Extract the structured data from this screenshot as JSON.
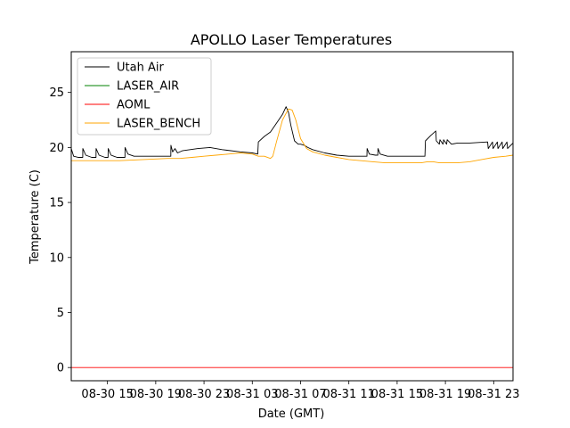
{
  "chart_data": {
    "type": "line",
    "title": "APOLLO Laser Temperatures",
    "xlabel": "Date (GMT)",
    "ylabel": "Temperature (C)",
    "xlim": [
      12.0,
      48.6
    ],
    "ylim": [
      -1.2,
      28.7
    ],
    "grid": false,
    "legend_position": "top-left",
    "x_unit": "hours since 08-30 00:00 GMT",
    "xticks": [
      {
        "value": 15,
        "label": "08-30 15"
      },
      {
        "value": 19,
        "label": "08-30 19"
      },
      {
        "value": 23,
        "label": "08-30 23"
      },
      {
        "value": 27,
        "label": "08-31 03"
      },
      {
        "value": 31,
        "label": "08-31 07"
      },
      {
        "value": 35,
        "label": "08-31 11"
      },
      {
        "value": 39,
        "label": "08-31 15"
      },
      {
        "value": 43,
        "label": "08-31 19"
      },
      {
        "value": 47,
        "label": "08-31 23"
      }
    ],
    "yticks": [
      {
        "value": 0,
        "label": "0"
      },
      {
        "value": 5,
        "label": "5"
      },
      {
        "value": 10,
        "label": "10"
      },
      {
        "value": 15,
        "label": "15"
      },
      {
        "value": 20,
        "label": "20"
      },
      {
        "value": 25,
        "label": "25"
      }
    ],
    "series": [
      {
        "name": "Utah Air",
        "color": "#000000",
        "points": [
          [
            12.0,
            19.9
          ],
          [
            12.2,
            19.2
          ],
          [
            12.6,
            19.1
          ],
          [
            12.95,
            19.1
          ],
          [
            12.96,
            19.9
          ],
          [
            13.2,
            19.3
          ],
          [
            13.7,
            19.1
          ],
          [
            14.05,
            19.1
          ],
          [
            14.06,
            19.9
          ],
          [
            14.3,
            19.3
          ],
          [
            14.8,
            19.1
          ],
          [
            15.05,
            19.1
          ],
          [
            15.06,
            19.9
          ],
          [
            15.3,
            19.3
          ],
          [
            15.8,
            19.1
          ],
          [
            16.45,
            19.1
          ],
          [
            16.46,
            20.0
          ],
          [
            16.7,
            19.4
          ],
          [
            17.2,
            19.2
          ],
          [
            18.5,
            19.2
          ],
          [
            19.5,
            19.2
          ],
          [
            20.25,
            19.2
          ],
          [
            20.26,
            20.2
          ],
          [
            20.4,
            19.6
          ],
          [
            20.6,
            19.9
          ],
          [
            20.8,
            19.5
          ],
          [
            21.2,
            19.7
          ],
          [
            22.5,
            19.9
          ],
          [
            23.5,
            20.0
          ],
          [
            24.5,
            19.8
          ],
          [
            26.0,
            19.6
          ],
          [
            27.0,
            19.5
          ],
          [
            27.45,
            19.4
          ],
          [
            27.5,
            20.5
          ],
          [
            28.0,
            21.0
          ],
          [
            28.5,
            21.4
          ],
          [
            29.0,
            22.2
          ],
          [
            29.5,
            23.0
          ],
          [
            29.8,
            23.7
          ],
          [
            30.0,
            23.2
          ],
          [
            30.2,
            22.0
          ],
          [
            30.5,
            20.6
          ],
          [
            30.8,
            20.3
          ],
          [
            31.0,
            20.3
          ],
          [
            31.3,
            20.2
          ],
          [
            31.6,
            20.0
          ],
          [
            32.0,
            19.8
          ],
          [
            33.0,
            19.5
          ],
          [
            34.0,
            19.3
          ],
          [
            35.0,
            19.2
          ],
          [
            36.5,
            19.2
          ],
          [
            36.51,
            19.9
          ],
          [
            36.7,
            19.4
          ],
          [
            37.2,
            19.3
          ],
          [
            37.4,
            19.3
          ],
          [
            37.41,
            19.9
          ],
          [
            37.6,
            19.4
          ],
          [
            38.2,
            19.2
          ],
          [
            39.5,
            19.2
          ],
          [
            41.0,
            19.2
          ],
          [
            41.3,
            19.2
          ],
          [
            41.35,
            20.6
          ],
          [
            41.8,
            21.1
          ],
          [
            42.2,
            21.5
          ],
          [
            42.25,
            20.6
          ],
          [
            42.5,
            20.3
          ],
          [
            42.55,
            20.7
          ],
          [
            42.8,
            20.3
          ],
          [
            42.85,
            20.7
          ],
          [
            43.1,
            20.3
          ],
          [
            43.15,
            20.7
          ],
          [
            43.5,
            20.3
          ],
          [
            44.0,
            20.4
          ],
          [
            45.0,
            20.4
          ],
          [
            46.5,
            20.5
          ],
          [
            46.55,
            19.9
          ],
          [
            46.9,
            20.5
          ],
          [
            46.95,
            19.9
          ],
          [
            47.3,
            20.5
          ],
          [
            47.35,
            19.9
          ],
          [
            47.7,
            20.5
          ],
          [
            47.75,
            19.9
          ],
          [
            48.1,
            20.5
          ],
          [
            48.15,
            19.9
          ],
          [
            48.6,
            20.4
          ]
        ]
      },
      {
        "name": "LASER_AIR",
        "color": "#008000",
        "points": []
      },
      {
        "name": "AOML",
        "color": "#ff0000",
        "points": [
          [
            12.0,
            0.0
          ],
          [
            48.6,
            0.0
          ]
        ]
      },
      {
        "name": "LASER_BENCH",
        "color": "#ffa500",
        "points": [
          [
            12.0,
            18.8
          ],
          [
            14.0,
            18.8
          ],
          [
            16.0,
            18.8
          ],
          [
            18.0,
            18.9
          ],
          [
            20.0,
            19.0
          ],
          [
            21.0,
            19.0
          ],
          [
            22.0,
            19.1
          ],
          [
            23.0,
            19.2
          ],
          [
            24.0,
            19.3
          ],
          [
            25.0,
            19.4
          ],
          [
            26.0,
            19.5
          ],
          [
            27.0,
            19.4
          ],
          [
            27.5,
            19.2
          ],
          [
            28.0,
            19.2
          ],
          [
            28.5,
            19.0
          ],
          [
            28.7,
            19.2
          ],
          [
            29.0,
            20.5
          ],
          [
            29.5,
            22.5
          ],
          [
            30.0,
            23.5
          ],
          [
            30.3,
            23.4
          ],
          [
            30.6,
            22.5
          ],
          [
            31.0,
            20.8
          ],
          [
            31.5,
            19.9
          ],
          [
            32.0,
            19.6
          ],
          [
            33.0,
            19.3
          ],
          [
            34.0,
            19.1
          ],
          [
            35.0,
            18.9
          ],
          [
            36.0,
            18.8
          ],
          [
            37.0,
            18.7
          ],
          [
            38.0,
            18.6
          ],
          [
            39.0,
            18.6
          ],
          [
            40.0,
            18.6
          ],
          [
            41.0,
            18.6
          ],
          [
            41.5,
            18.7
          ],
          [
            42.0,
            18.7
          ],
          [
            42.5,
            18.6
          ],
          [
            43.0,
            18.6
          ],
          [
            44.0,
            18.6
          ],
          [
            45.0,
            18.7
          ],
          [
            46.0,
            18.9
          ],
          [
            47.0,
            19.1
          ],
          [
            48.0,
            19.2
          ],
          [
            48.6,
            19.3
          ]
        ]
      }
    ]
  }
}
